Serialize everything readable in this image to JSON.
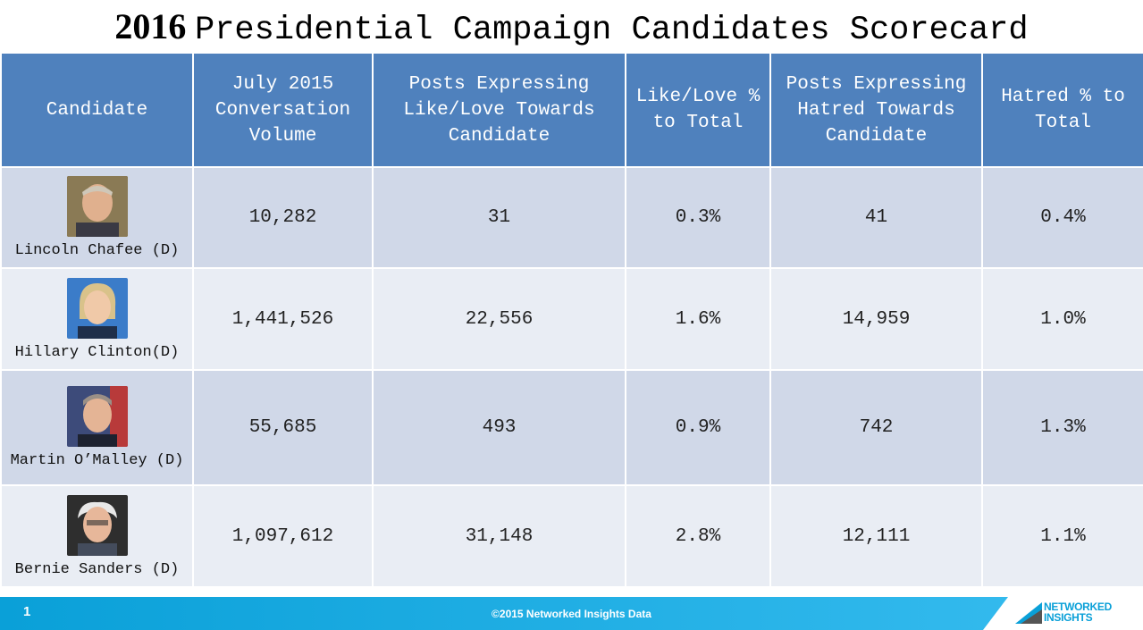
{
  "title": {
    "year": "2016",
    "text": "Presidential Campaign Candidates Scorecard"
  },
  "headers": [
    "Candidate",
    "July 2015 Conversation Volume",
    "Posts Expressing Like/Love Towards Candidate",
    "Like/Love % to Total",
    "Posts Expressing Hatred Towards Candidate",
    "Hatred % to Total"
  ],
  "rows": [
    {
      "name": "Lincoln Chafee (D)",
      "volume": "10,282",
      "like_posts": "31",
      "like_pct": "0.3%",
      "hate_posts": "41",
      "hate_pct": "0.4%"
    },
    {
      "name": "Hillary Clinton(D)",
      "volume": "1,441,526",
      "like_posts": "22,556",
      "like_pct": "1.6%",
      "hate_posts": "14,959",
      "hate_pct": "1.0%"
    },
    {
      "name": "Martin O’Malley (D)",
      "volume": "55,685",
      "like_posts": "493",
      "like_pct": "0.9%",
      "hate_posts": "742",
      "hate_pct": "1.3%"
    },
    {
      "name": "Bernie Sanders (D)",
      "volume": "1,097,612",
      "like_posts": "31,148",
      "like_pct": "2.8%",
      "hate_posts": "12,111",
      "hate_pct": "1.1%"
    }
  ],
  "footer": {
    "page_number": "1",
    "copyright": "©2015 Networked Insights Data",
    "logo_line1": "NETWORKED",
    "logo_line2": "INSIGHTS"
  },
  "colors": {
    "header_bg": "#4f81bd",
    "row_dark": "#d0d8e8",
    "row_light": "#e9edf4",
    "footer": "#0aa0d8"
  }
}
